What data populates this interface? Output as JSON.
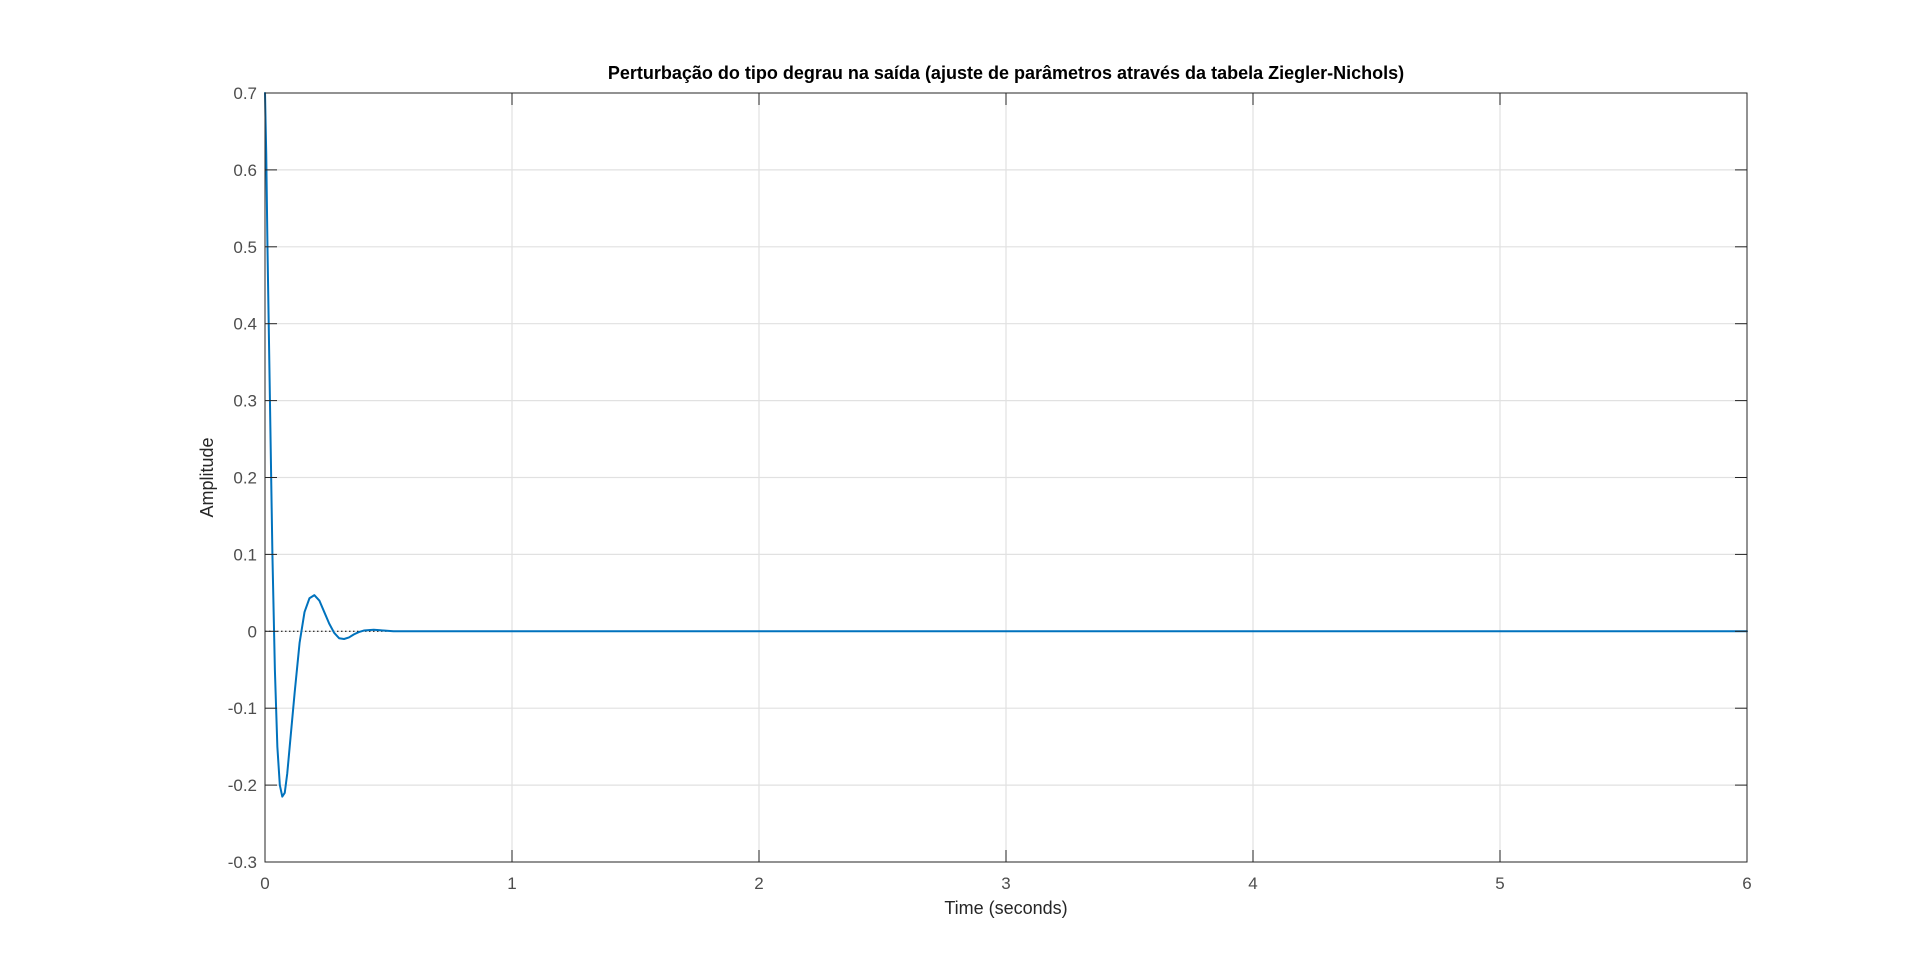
{
  "chart_data": {
    "type": "line",
    "title": "Perturbação do tipo degrau na saída (ajuste de parâmetros através da tabela Ziegler-Nichols)",
    "xlabel": "Time (seconds)",
    "ylabel": "Amplitude",
    "xlim": [
      0,
      6
    ],
    "ylim": [
      -0.3,
      0.7
    ],
    "xticks": [
      0,
      1,
      2,
      3,
      4,
      5,
      6
    ],
    "xtick_labels": [
      "0",
      "1",
      "2",
      "3",
      "4",
      "5",
      "6"
    ],
    "yticks": [
      -0.3,
      -0.2,
      -0.1,
      0,
      0.1,
      0.2,
      0.3,
      0.4,
      0.5,
      0.6,
      0.7
    ],
    "ytick_labels": [
      "-0.3",
      "-0.2",
      "-0.1",
      "0",
      "0.1",
      "0.2",
      "0.3",
      "0.4",
      "0.5",
      "0.6",
      "0.7"
    ],
    "grid": true,
    "reference_line": {
      "y": 0,
      "x_range": [
        0,
        0.5
      ],
      "style": "dotted"
    },
    "series": [
      {
        "color": "#0072BD",
        "x": [
          0,
          0.005,
          0.01,
          0.02,
          0.03,
          0.04,
          0.05,
          0.06,
          0.07,
          0.08,
          0.09,
          0.1,
          0.12,
          0.14,
          0.16,
          0.18,
          0.2,
          0.22,
          0.24,
          0.26,
          0.28,
          0.3,
          0.32,
          0.34,
          0.36,
          0.38,
          0.4,
          0.44,
          0.48,
          0.52,
          0.56,
          0.6,
          1,
          2,
          3,
          4,
          5,
          6
        ],
        "y": [
          0.7,
          0.62,
          0.5,
          0.3,
          0.1,
          -0.05,
          -0.15,
          -0.2,
          -0.215,
          -0.21,
          -0.185,
          -0.15,
          -0.08,
          -0.015,
          0.025,
          0.043,
          0.047,
          0.04,
          0.025,
          0.01,
          -0.002,
          -0.009,
          -0.01,
          -0.008,
          -0.004,
          -0.001,
          0.001,
          0.002,
          0.001,
          0.0,
          0.0,
          0.0,
          0,
          0,
          0,
          0,
          0,
          0
        ]
      }
    ]
  }
}
